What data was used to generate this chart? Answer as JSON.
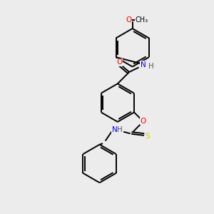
{
  "background_color": "#ececec",
  "bond_color": "#000000",
  "atom_colors": {
    "O": "#ff0000",
    "N": "#0000ff",
    "S": "#cccc00",
    "C": "#000000",
    "H": "#555555"
  },
  "figsize": [
    3.0,
    3.0
  ],
  "dpi": 100,
  "bond_lw": 1.4,
  "font_size": 7.5
}
